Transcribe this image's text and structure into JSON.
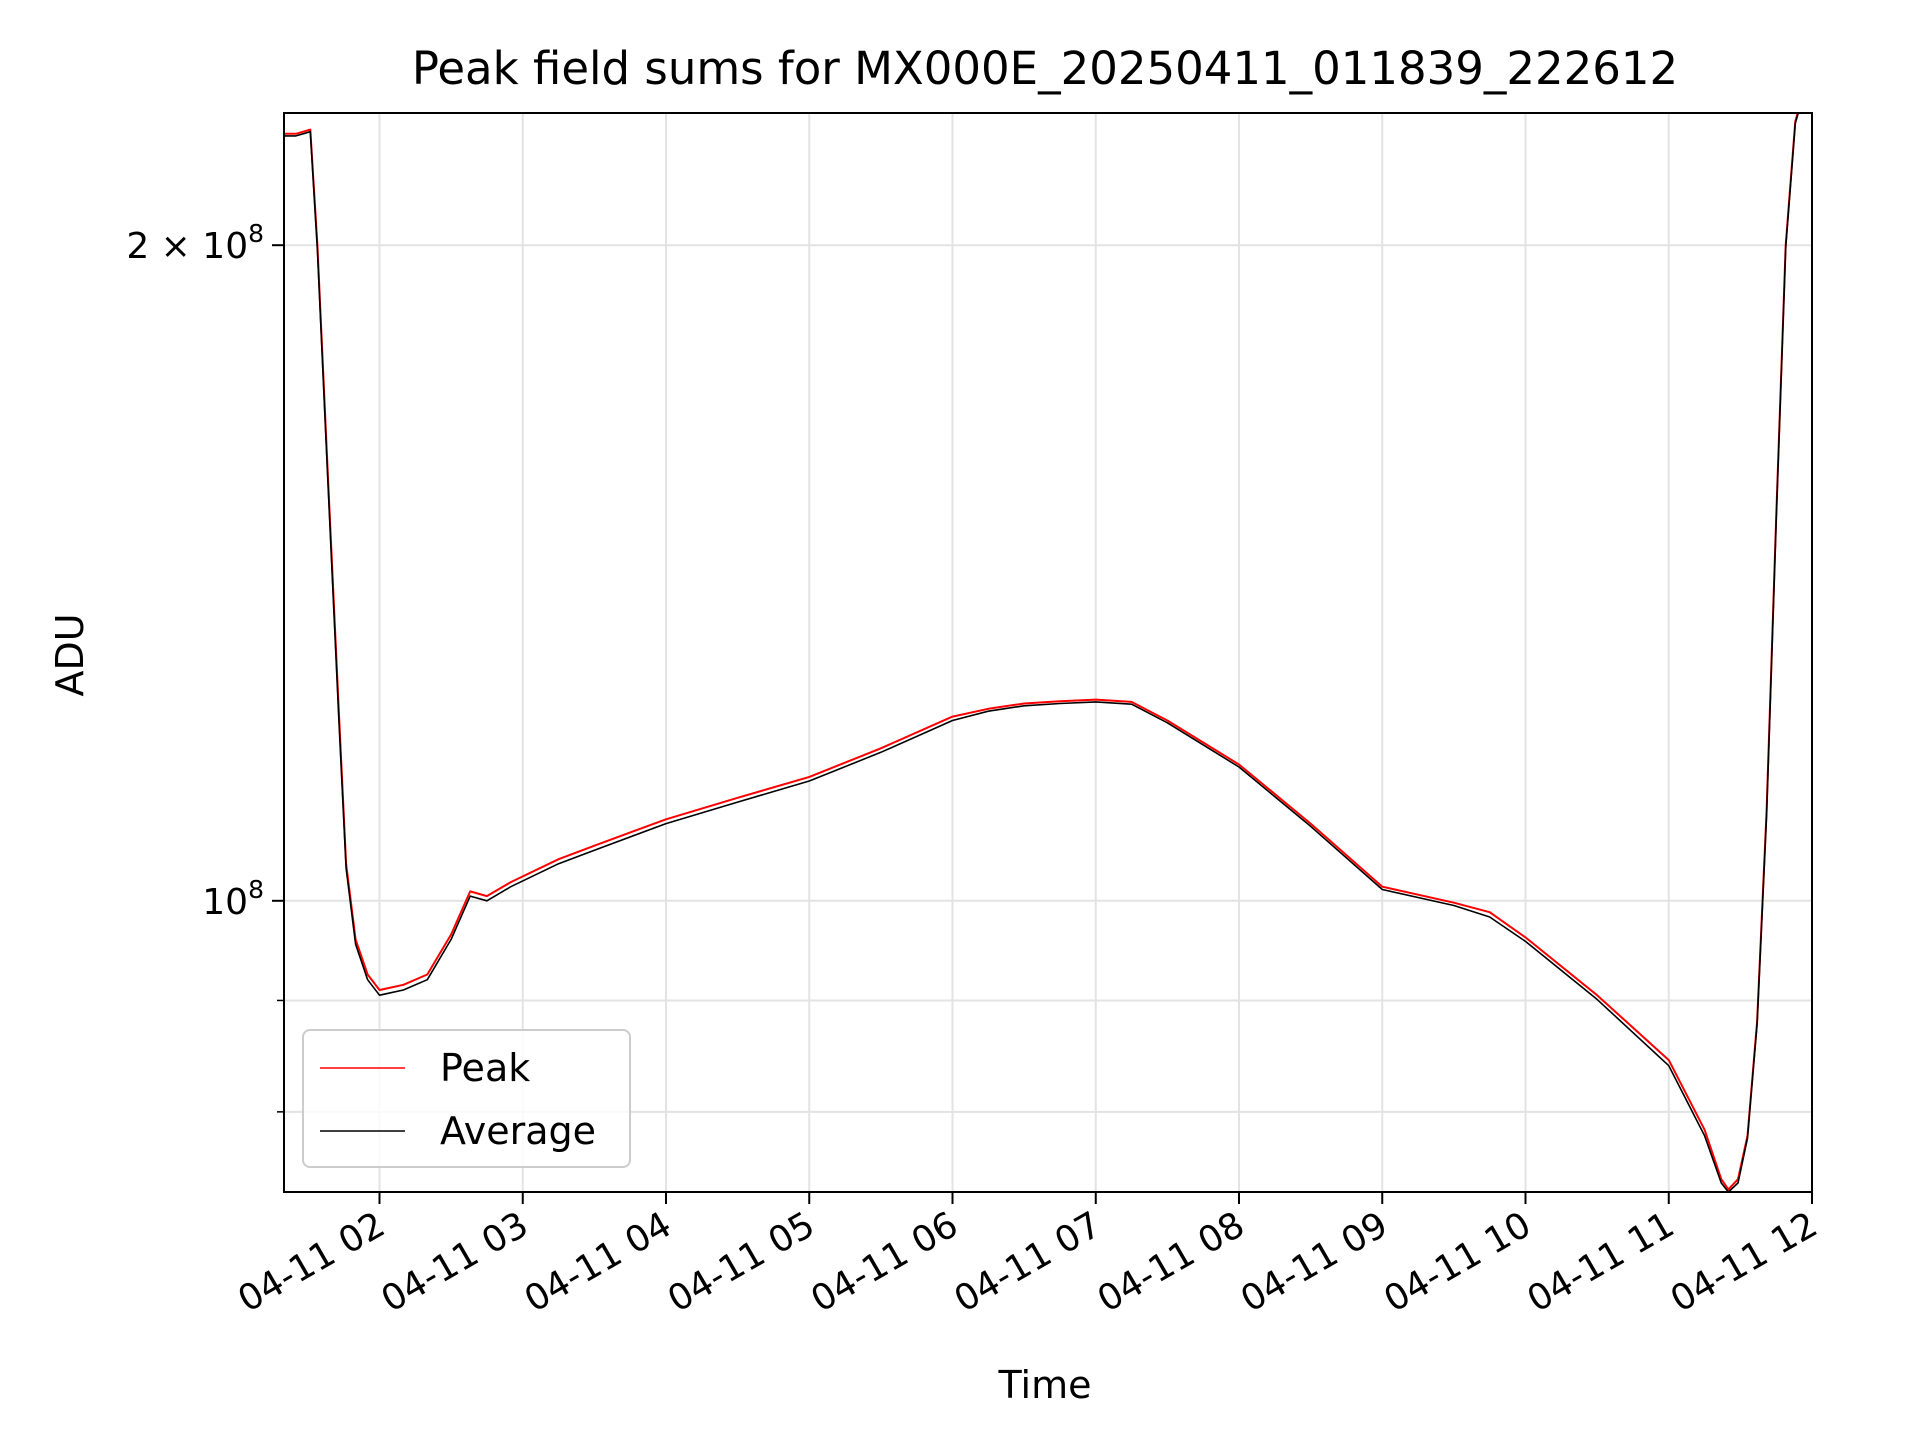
{
  "chart_data": {
    "type": "line",
    "title": "Peak field sums for MX000E_20250411_011839_222612",
    "xlabel": "Time",
    "ylabel": "ADU",
    "x_unit": "date-hour",
    "xlim": [
      "2025-04-11 01:20",
      "2025-04-11 12:00"
    ],
    "ylim": [
      73500000,
      230000000
    ],
    "yscale": "log",
    "grid": true,
    "legend_position": "lower-left",
    "x_ticks": [
      {
        "value": "2025-04-11 02:00",
        "label": "04-11 02"
      },
      {
        "value": "2025-04-11 03:00",
        "label": "04-11 03"
      },
      {
        "value": "2025-04-11 04:00",
        "label": "04-11 04"
      },
      {
        "value": "2025-04-11 05:00",
        "label": "04-11 05"
      },
      {
        "value": "2025-04-11 06:00",
        "label": "04-11 06"
      },
      {
        "value": "2025-04-11 07:00",
        "label": "04-11 07"
      },
      {
        "value": "2025-04-11 08:00",
        "label": "04-11 08"
      },
      {
        "value": "2025-04-11 09:00",
        "label": "04-11 09"
      },
      {
        "value": "2025-04-11 10:00",
        "label": "04-11 10"
      },
      {
        "value": "2025-04-11 11:00",
        "label": "04-11 11"
      },
      {
        "value": "2025-04-11 12:00",
        "label": "04-11 12"
      }
    ],
    "y_major_ticks": [
      {
        "value": 100000000,
        "label_base": "10",
        "label_exp": "8"
      },
      {
        "value": 200000000,
        "label_base": "2 × 10",
        "label_exp": "8"
      }
    ],
    "y_minor_ticks": [
      60000000,
      70000000,
      80000000,
      90000000
    ],
    "series": [
      {
        "name": "Peak",
        "color": "#ff0000",
        "x": [
          "2025-04-11 01:20",
          "2025-04-11 01:25",
          "2025-04-11 01:31",
          "2025-04-11 01:34",
          "2025-04-11 01:38",
          "2025-04-11 01:43",
          "2025-04-11 01:46",
          "2025-04-11 01:50",
          "2025-04-11 01:55",
          "2025-04-11 02:00",
          "2025-04-11 02:10",
          "2025-04-11 02:20",
          "2025-04-11 02:30",
          "2025-04-11 02:38",
          "2025-04-11 02:45",
          "2025-04-11 02:55",
          "2025-04-11 03:15",
          "2025-04-11 03:30",
          "2025-04-11 04:00",
          "2025-04-11 04:30",
          "2025-04-11 05:00",
          "2025-04-11 05:30",
          "2025-04-11 06:00",
          "2025-04-11 06:15",
          "2025-04-11 06:30",
          "2025-04-11 06:45",
          "2025-04-11 07:00",
          "2025-04-11 07:15",
          "2025-04-11 07:30",
          "2025-04-11 08:00",
          "2025-04-11 08:30",
          "2025-04-11 09:00",
          "2025-04-11 09:30",
          "2025-04-11 09:45",
          "2025-04-11 10:00",
          "2025-04-11 10:30",
          "2025-04-11 11:00",
          "2025-04-11 11:15",
          "2025-04-11 11:22",
          "2025-04-11 11:25",
          "2025-04-11 11:29",
          "2025-04-11 11:33",
          "2025-04-11 11:37",
          "2025-04-11 11:41",
          "2025-04-11 11:45",
          "2025-04-11 11:49",
          "2025-04-11 11:53",
          "2025-04-11 11:55"
        ],
        "y": [
          225000000,
          225000000,
          226000000,
          200000000,
          160000000,
          122000000,
          104000000,
          96000000,
          92500000,
          91000000,
          91500000,
          92500000,
          96500000,
          101000000,
          100500000,
          102000000,
          104500000,
          106000000,
          109000000,
          111500000,
          114000000,
          117500000,
          121500000,
          122500000,
          123200000,
          123500000,
          123700000,
          123400000,
          121000000,
          115500000,
          108500000,
          101500000,
          99800000,
          98800000,
          96200000,
          90500000,
          84500000,
          78500000,
          74500000,
          73700000,
          74500000,
          78000000,
          88000000,
          110000000,
          150000000,
          200000000,
          228000000,
          232000000
        ]
      },
      {
        "name": "Average",
        "color": "#000000",
        "x": [
          "2025-04-11 01:20",
          "2025-04-11 01:25",
          "2025-04-11 01:31",
          "2025-04-11 01:34",
          "2025-04-11 01:38",
          "2025-04-11 01:43",
          "2025-04-11 01:46",
          "2025-04-11 01:50",
          "2025-04-11 01:55",
          "2025-04-11 02:00",
          "2025-04-11 02:10",
          "2025-04-11 02:20",
          "2025-04-11 02:30",
          "2025-04-11 02:38",
          "2025-04-11 02:45",
          "2025-04-11 02:55",
          "2025-04-11 03:15",
          "2025-04-11 03:30",
          "2025-04-11 04:00",
          "2025-04-11 04:30",
          "2025-04-11 05:00",
          "2025-04-11 05:30",
          "2025-04-11 06:00",
          "2025-04-11 06:15",
          "2025-04-11 06:30",
          "2025-04-11 06:45",
          "2025-04-11 07:00",
          "2025-04-11 07:15",
          "2025-04-11 07:30",
          "2025-04-11 08:00",
          "2025-04-11 08:30",
          "2025-04-11 09:00",
          "2025-04-11 09:30",
          "2025-04-11 09:45",
          "2025-04-11 10:00",
          "2025-04-11 10:30",
          "2025-04-11 11:00",
          "2025-04-11 11:15",
          "2025-04-11 11:22",
          "2025-04-11 11:25",
          "2025-04-11 11:29",
          "2025-04-11 11:33",
          "2025-04-11 11:37",
          "2025-04-11 11:41",
          "2025-04-11 11:45",
          "2025-04-11 11:49",
          "2025-04-11 11:53",
          "2025-04-11 11:55"
        ],
        "y": [
          224500000,
          224500000,
          225500000,
          199000000,
          159000000,
          121000000,
          103500000,
          95500000,
          92000000,
          90500000,
          91000000,
          92000000,
          96000000,
          100500000,
          100000000,
          101500000,
          104000000,
          105500000,
          108500000,
          111000000,
          113500000,
          117000000,
          121000000,
          122200000,
          122900000,
          123200000,
          123400000,
          123100000,
          120700000,
          115200000,
          108200000,
          101200000,
          99500000,
          98300000,
          95800000,
          90100000,
          84000000,
          78000000,
          74200000,
          73500000,
          74200000,
          77800000,
          87800000,
          109500000,
          149500000,
          199500000,
          227500000,
          231500000
        ]
      }
    ]
  }
}
